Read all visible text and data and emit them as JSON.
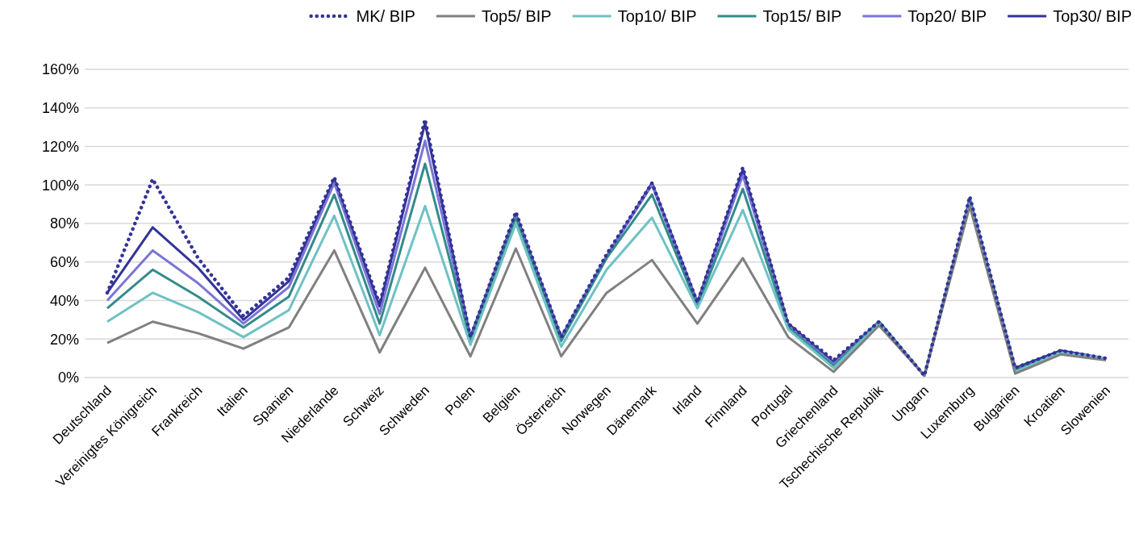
{
  "chart_data": {
    "type": "line",
    "categories": [
      "Deutschland",
      "Vereinigtes Königreich",
      "Frankreich",
      "Italien",
      "Spanien",
      "Niederlande",
      "Schweiz",
      "Schweden",
      "Polen",
      "Belgien",
      "Österreich",
      "Norwegen",
      "Dänemark",
      "Irland",
      "Finnland",
      "Portugal",
      "Griechenland",
      "Tschechische Republik",
      "Ungarn",
      "Luxemburg",
      "Bulgarien",
      "Kroatien",
      "Slowenien"
    ],
    "series": [
      {
        "name": "MK/ BIP",
        "color": "#333399",
        "line_style": "dotted",
        "values": [
          44,
          103,
          62,
          32,
          52,
          104,
          38,
          134,
          21,
          86,
          21,
          64,
          101,
          39,
          109,
          28,
          9,
          29,
          1,
          94,
          5,
          14,
          10
        ]
      },
      {
        "name": "Top5/ BIP",
        "color": "#808080",
        "line_style": "solid",
        "values": [
          18,
          29,
          23,
          15,
          26,
          66,
          13,
          57,
          11,
          67,
          11,
          44,
          61,
          28,
          62,
          21,
          3,
          27,
          1,
          89,
          2,
          12,
          9
        ]
      },
      {
        "name": "Top10/ BIP",
        "color": "#6ec1c4",
        "line_style": "solid",
        "values": [
          29,
          44,
          34,
          21,
          35,
          84,
          22,
          89,
          17,
          80,
          16,
          56,
          83,
          36,
          87,
          25,
          5,
          28,
          1,
          90,
          3,
          13,
          10
        ]
      },
      {
        "name": "Top15/ BIP",
        "color": "#338b8b",
        "line_style": "solid",
        "values": [
          36,
          56,
          42,
          26,
          42,
          95,
          28,
          111,
          19,
          83,
          19,
          62,
          95,
          37,
          98,
          26,
          6,
          29,
          1,
          91,
          4,
          13,
          10
        ]
      },
      {
        "name": "Top20/ BIP",
        "color": "#7b75d6",
        "line_style": "solid",
        "values": [
          40,
          66,
          49,
          28,
          47,
          101,
          33,
          123,
          20,
          84,
          20,
          63,
          100,
          38,
          105,
          27,
          7,
          29,
          1,
          92,
          4,
          13,
          10
        ]
      },
      {
        "name": "Top30/ BIP",
        "color": "#333399",
        "line_style": "solid",
        "values": [
          44,
          78,
          57,
          30,
          50,
          103,
          37,
          132,
          21,
          85,
          21,
          63,
          101,
          39,
          108,
          28,
          8,
          29,
          1,
          93,
          5,
          14,
          10
        ]
      }
    ],
    "ylim": [
      0,
      160
    ],
    "yticks": [
      {
        "value": 0,
        "label": "0%"
      },
      {
        "value": 20,
        "label": "20%"
      },
      {
        "value": 40,
        "label": "40%"
      },
      {
        "value": 60,
        "label": "60%"
      },
      {
        "value": 80,
        "label": "80%"
      },
      {
        "value": 100,
        "label": "100%"
      },
      {
        "value": 120,
        "label": "120%"
      },
      {
        "value": 140,
        "label": "140%"
      },
      {
        "value": 160,
        "label": "160%"
      }
    ],
    "grid": "y",
    "legend": "top",
    "marker": "none"
  }
}
